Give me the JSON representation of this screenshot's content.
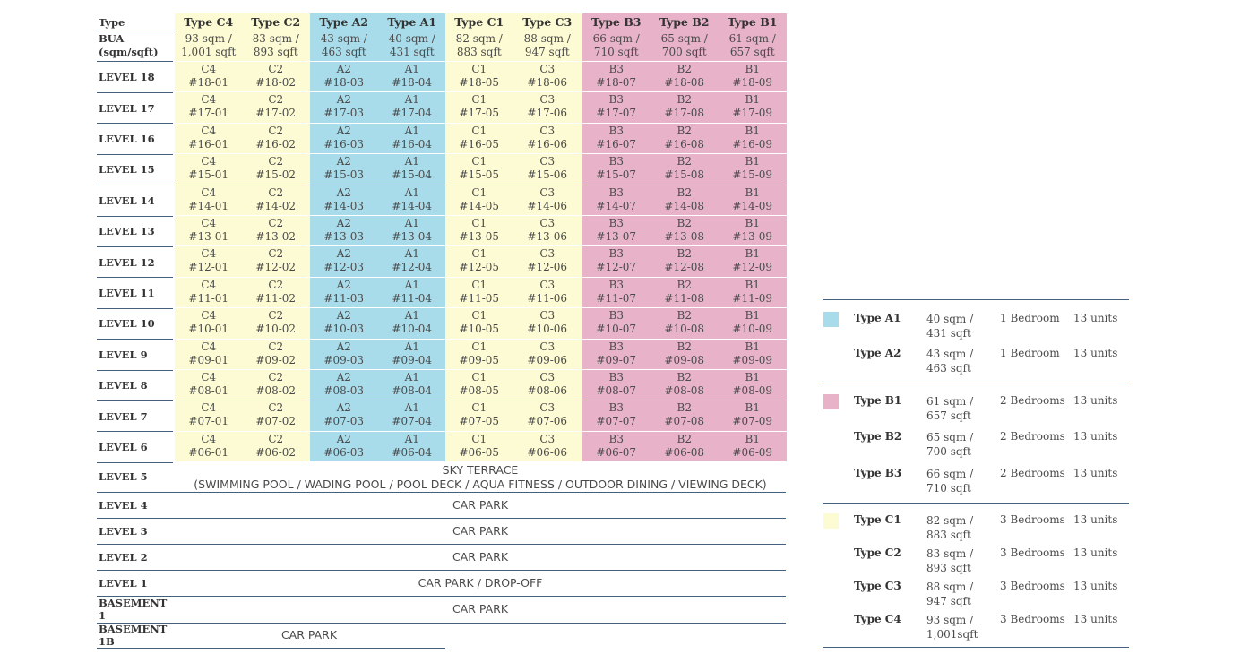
{
  "table": {
    "type_label": "Type",
    "bua_label": [
      "BUA",
      "(sqm/sqft)"
    ],
    "columns": [
      {
        "type": "Type C4",
        "unit": "C4",
        "size": [
          "93 sqm /",
          "1,001 sqft"
        ],
        "group": "C"
      },
      {
        "type": "Type C2",
        "unit": "C2",
        "size": [
          "83 sqm /",
          "893 sqft"
        ],
        "group": "C"
      },
      {
        "type": "Type A2",
        "unit": "A2",
        "size": [
          "43 sqm /",
          "463 sqft"
        ],
        "group": "A"
      },
      {
        "type": "Type A1",
        "unit": "A1",
        "size": [
          "40 sqm /",
          "431 sqft"
        ],
        "group": "A"
      },
      {
        "type": "Type C1",
        "unit": "C1",
        "size": [
          "82 sqm /",
          "883 sqft"
        ],
        "group": "C"
      },
      {
        "type": "Type C3",
        "unit": "C3",
        "size": [
          "88 sqm /",
          "947 sqft"
        ],
        "group": "C"
      },
      {
        "type": "Type B3",
        "unit": "B3",
        "size": [
          "66 sqm /",
          "710 sqft"
        ],
        "group": "B"
      },
      {
        "type": "Type B2",
        "unit": "B2",
        "size": [
          "65 sqm /",
          "700 sqft"
        ],
        "group": "B"
      },
      {
        "type": "Type B1",
        "unit": "B1",
        "size": [
          "61 sqm /",
          "657 sqft"
        ],
        "group": "B"
      }
    ],
    "unit_rows": [
      {
        "label": "LEVEL 18",
        "floor": "18"
      },
      {
        "label": "LEVEL 17",
        "floor": "17"
      },
      {
        "label": "LEVEL 16",
        "floor": "16"
      },
      {
        "label": "LEVEL 15",
        "floor": "15"
      },
      {
        "label": "LEVEL 14",
        "floor": "14"
      },
      {
        "label": "LEVEL 13",
        "floor": "13"
      },
      {
        "label": "LEVEL 12",
        "floor": "12"
      },
      {
        "label": "LEVEL 11",
        "floor": "11"
      },
      {
        "label": "LEVEL 10",
        "floor": "10"
      },
      {
        "label": "LEVEL 9",
        "floor": "09"
      },
      {
        "label": "LEVEL 8",
        "floor": "08"
      },
      {
        "label": "LEVEL 7",
        "floor": "07"
      },
      {
        "label": "LEVEL 6",
        "floor": "06"
      }
    ],
    "unit_suffixes": [
      "01",
      "02",
      "03",
      "04",
      "05",
      "06",
      "07",
      "08",
      "09"
    ],
    "facility_rows": [
      {
        "label": "LEVEL 5",
        "text": [
          "SKY TERRACE",
          "(SWIMMING POOL / WADING POOL / POOL DECK / AQUA FITNESS / OUTDOOR DINING / VIEWING DECK)"
        ]
      },
      {
        "label": "LEVEL 4",
        "text": [
          "CAR PARK"
        ]
      },
      {
        "label": "LEVEL 3",
        "text": [
          "CAR PARK"
        ]
      },
      {
        "label": "LEVEL 2",
        "text": [
          "CAR PARK"
        ]
      },
      {
        "label": "LEVEL 1",
        "text": [
          "CAR PARK / DROP-OFF"
        ]
      },
      {
        "label": "BASEMENT 1",
        "text": [
          "CAR PARK"
        ]
      },
      {
        "label": "BASEMENT 1B",
        "text": [
          "CAR PARK"
        ]
      }
    ]
  },
  "colors": {
    "A": "#a9dcea",
    "B": "#e8b3c8",
    "C": "#fdfbd3",
    "rule": "#44607c"
  },
  "legend": [
    {
      "group": "A",
      "items": [
        {
          "type": "Type A1",
          "size": [
            "40 sqm /",
            "431 sqft"
          ],
          "bedrooms": "1 Bedroom",
          "units": "13 units"
        },
        {
          "type": "Type A2",
          "size": [
            "43 sqm /",
            "463 sqft"
          ],
          "bedrooms": "1 Bedroom",
          "units": "13 units"
        }
      ]
    },
    {
      "group": "B",
      "items": [
        {
          "type": "Type B1",
          "size": [
            "61 sqm /",
            "657 sqft"
          ],
          "bedrooms": "2 Bedrooms",
          "units": "13 units"
        },
        {
          "type": "Type B2",
          "size": [
            "65 sqm /",
            "700 sqft"
          ],
          "bedrooms": "2 Bedrooms",
          "units": "13 units"
        },
        {
          "type": "Type B3",
          "size": [
            "66 sqm /",
            "710 sqft"
          ],
          "bedrooms": "2 Bedrooms",
          "units": "13 units"
        }
      ]
    },
    {
      "group": "C",
      "items": [
        {
          "type": "Type C1",
          "size": [
            "82 sqm /",
            "883 sqft"
          ],
          "bedrooms": "3 Bedrooms",
          "units": "13 units"
        },
        {
          "type": "Type C2",
          "size": [
            "83 sqm /",
            "893 sqft"
          ],
          "bedrooms": "3 Bedrooms",
          "units": "13 units"
        },
        {
          "type": "Type C3",
          "size": [
            "88 sqm /",
            "947 sqft"
          ],
          "bedrooms": "3 Bedrooms",
          "units": "13 units"
        },
        {
          "type": "Type C4",
          "size": [
            "93 sqm /",
            "1,001sqft"
          ],
          "bedrooms": "3 Bedrooms",
          "units": "13 units"
        }
      ]
    }
  ]
}
